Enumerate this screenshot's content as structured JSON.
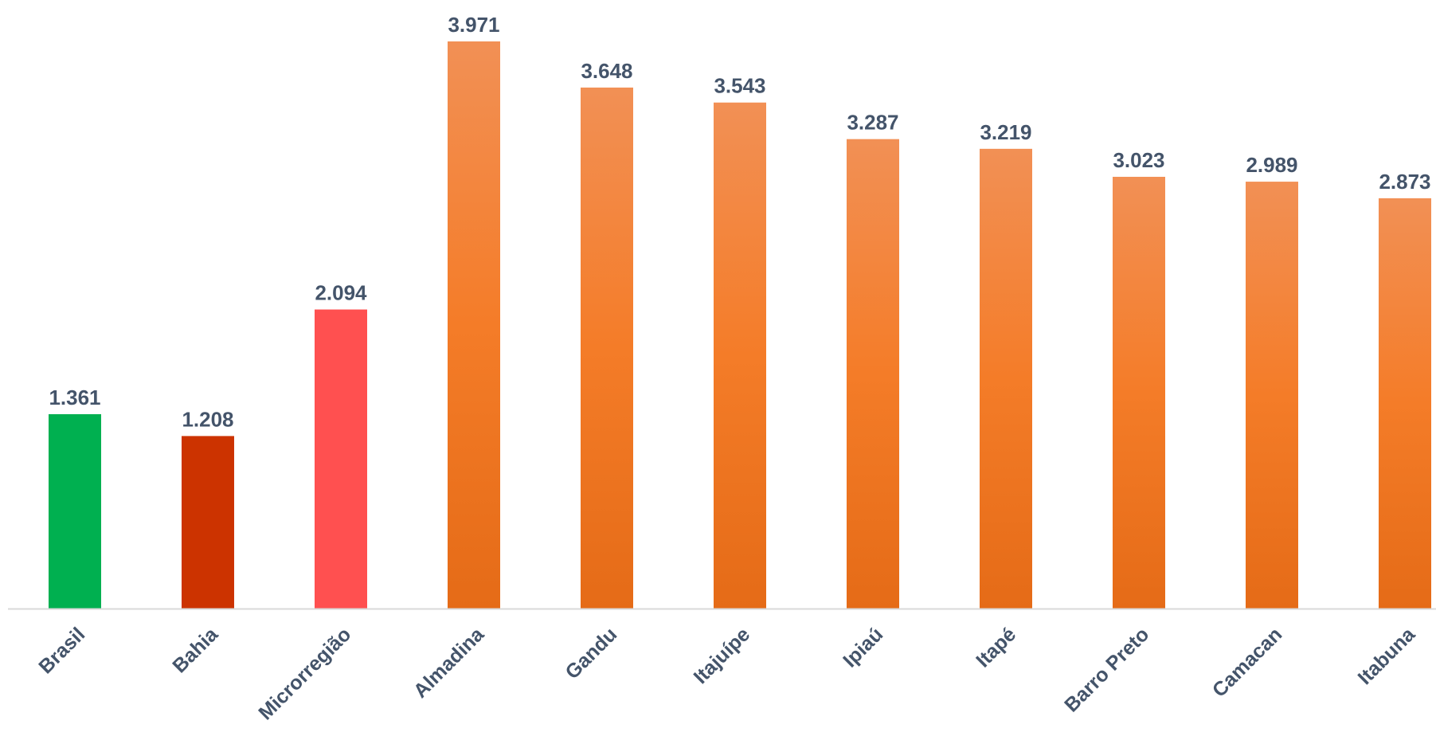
{
  "chart_data": {
    "type": "bar",
    "title": "",
    "xlabel": "",
    "ylabel": "",
    "categories": [
      "Brasil",
      "Bahia",
      "Microrregião",
      "Almadina",
      "Gandu",
      "Itajuípe",
      "Ipiaú",
      "Itapé",
      "Barro Preto",
      "Camacan",
      "Itabuna"
    ],
    "values": [
      1.361,
      1.208,
      2.094,
      3.971,
      3.648,
      3.543,
      3.287,
      3.219,
      3.023,
      2.989,
      2.873
    ],
    "value_labels": [
      "1.361",
      "1.208",
      "2.094",
      "3.971",
      "3.648",
      "3.543",
      "3.287",
      "3.219",
      "3.023",
      "2.989",
      "2.873"
    ],
    "ylim": [
      0,
      3.971
    ],
    "grid": false,
    "legend": "none",
    "bar_colors": [
      "#00b050",
      "#cc3300",
      "#ff5050",
      "#f07c2c",
      "#f07c2c",
      "#f07c2c",
      "#f07c2c",
      "#f07c2c",
      "#f07c2c",
      "#f07c2c",
      "#f07c2c"
    ],
    "gradient_colors": {
      "top": "#f29055",
      "middle": "#f47c28",
      "bottom": "#e56b17"
    },
    "label_color": "#44546a",
    "axis_color": "#d9d9d9"
  }
}
